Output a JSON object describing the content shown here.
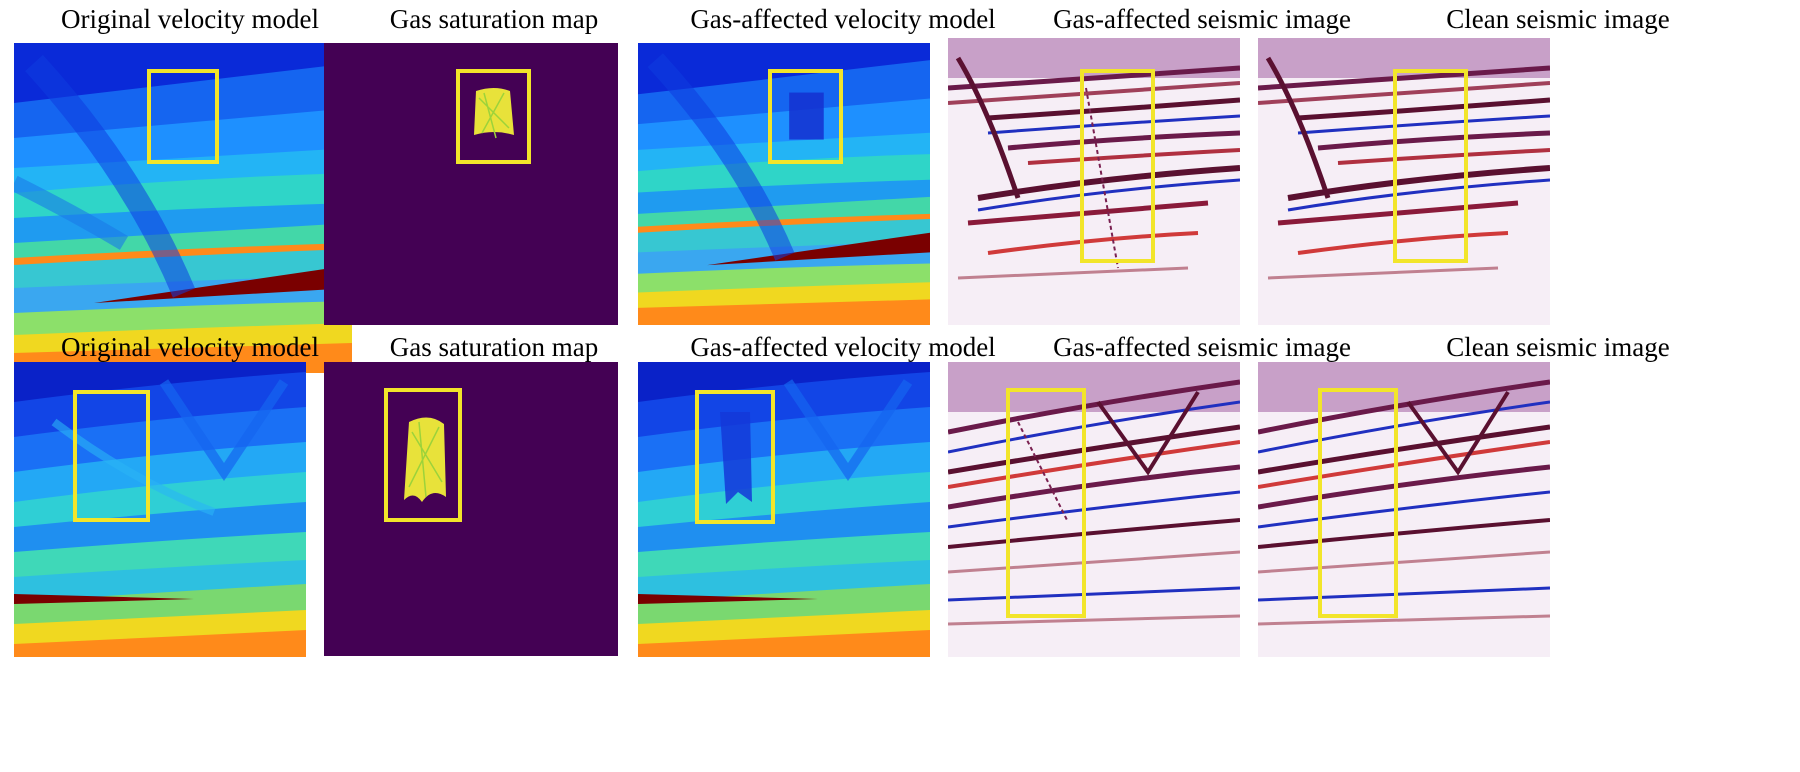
{
  "rows": [
    {
      "titles": [
        "Original velocity model",
        "Gas saturation map",
        "Gas-affected velocity model",
        "Gas-affected seismic image",
        "Clean seismic image"
      ]
    },
    {
      "titles": [
        "Original velocity model",
        "Gas saturation map",
        "Gas-affected velocity model",
        "Gas-affected seismic image",
        "Clean seismic image"
      ]
    }
  ],
  "colors": {
    "highlight_box": "#f2e52a",
    "saturation_background": "#440154",
    "gas_plume": "#e8e23a",
    "velocity_low": "#0a22d8",
    "velocity_high": "#7a0000"
  }
}
